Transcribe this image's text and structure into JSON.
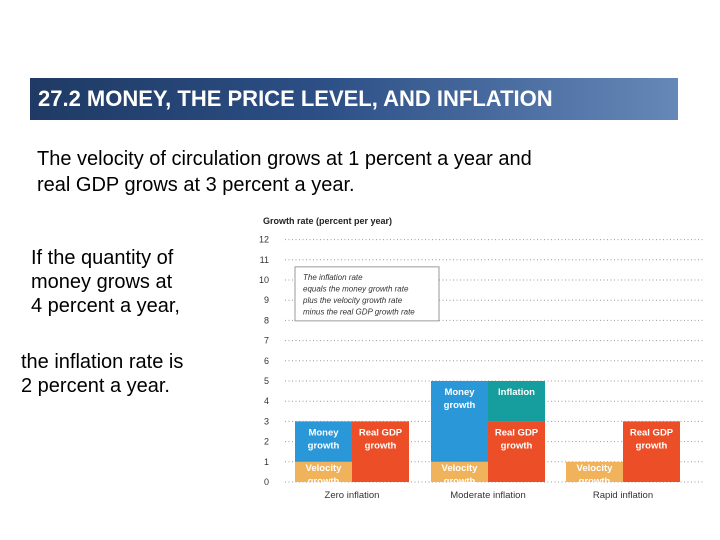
{
  "slide": {
    "title": "27.2  MONEY, THE PRICE LEVEL, AND INFLATION",
    "intro_line1": "The velocity of circulation grows at 1 percent a year and",
    "intro_line2": "real GDP grows at 3 percent a year.",
    "side_lines_1": [
      "If the quantity of",
      "money grows at",
      "4 percent a year,"
    ],
    "side_lines_2": [
      "the inflation rate is",
      "2 percent a year."
    ]
  },
  "colors": {
    "title_bar": "#2c4f86",
    "money": "#2a97d8",
    "velocity": "#f0b25a",
    "real_gdp": "#ec4f28",
    "inflation": "#169e9e"
  },
  "chart_data": {
    "type": "bar",
    "title": "Growth rate (percent per year)",
    "ylim": [
      0,
      12
    ],
    "yticks": [
      "0",
      "1",
      "2",
      "3",
      "4",
      "5",
      "6",
      "7",
      "8",
      "9",
      "10",
      "11",
      "12"
    ],
    "grid": true,
    "legend_box": {
      "lines": [
        "The inflation rate",
        "equals the money growth rate",
        "plus the velocity growth rate",
        "minus the real GDP growth rate"
      ],
      "placement": "top-left"
    },
    "categories": [
      "Zero inflation",
      "Moderate inflation",
      "Rapid inflation"
    ],
    "groups": [
      {
        "name": "Zero inflation",
        "left_stack": [
          {
            "component": "Velocity",
            "label": "Velocity growth",
            "from": 0,
            "to": 1,
            "color": "#f0b25a"
          },
          {
            "component": "Money",
            "label": "Money growth",
            "from": 1,
            "to": 3,
            "color": "#2a97d8"
          }
        ],
        "right_stack": [
          {
            "component": "Real GDP",
            "label": "Real GDP growth",
            "from": 0,
            "to": 3,
            "color": "#ec4f28"
          }
        ]
      },
      {
        "name": "Moderate inflation",
        "left_stack": [
          {
            "component": "Velocity",
            "label": "Velocity growth",
            "from": 0,
            "to": 1,
            "color": "#f0b25a"
          },
          {
            "component": "Money",
            "label": "Money growth",
            "from": 1,
            "to": 5,
            "color": "#2a97d8"
          }
        ],
        "right_stack": [
          {
            "component": "Real GDP",
            "label": "Real GDP growth",
            "from": 0,
            "to": 3,
            "color": "#ec4f28"
          },
          {
            "component": "Inflation",
            "label": "Inflation",
            "from": 3,
            "to": 5,
            "color": "#169e9e"
          }
        ]
      },
      {
        "name": "Rapid inflation",
        "left_stack": [
          {
            "component": "Velocity",
            "label": "Velocity growth",
            "from": 0,
            "to": 1,
            "color": "#f0b25a"
          }
        ],
        "right_stack": [
          {
            "component": "Real GDP",
            "label": "Real GDP growth",
            "from": 0,
            "to": 3,
            "color": "#ec4f28"
          }
        ]
      }
    ]
  }
}
